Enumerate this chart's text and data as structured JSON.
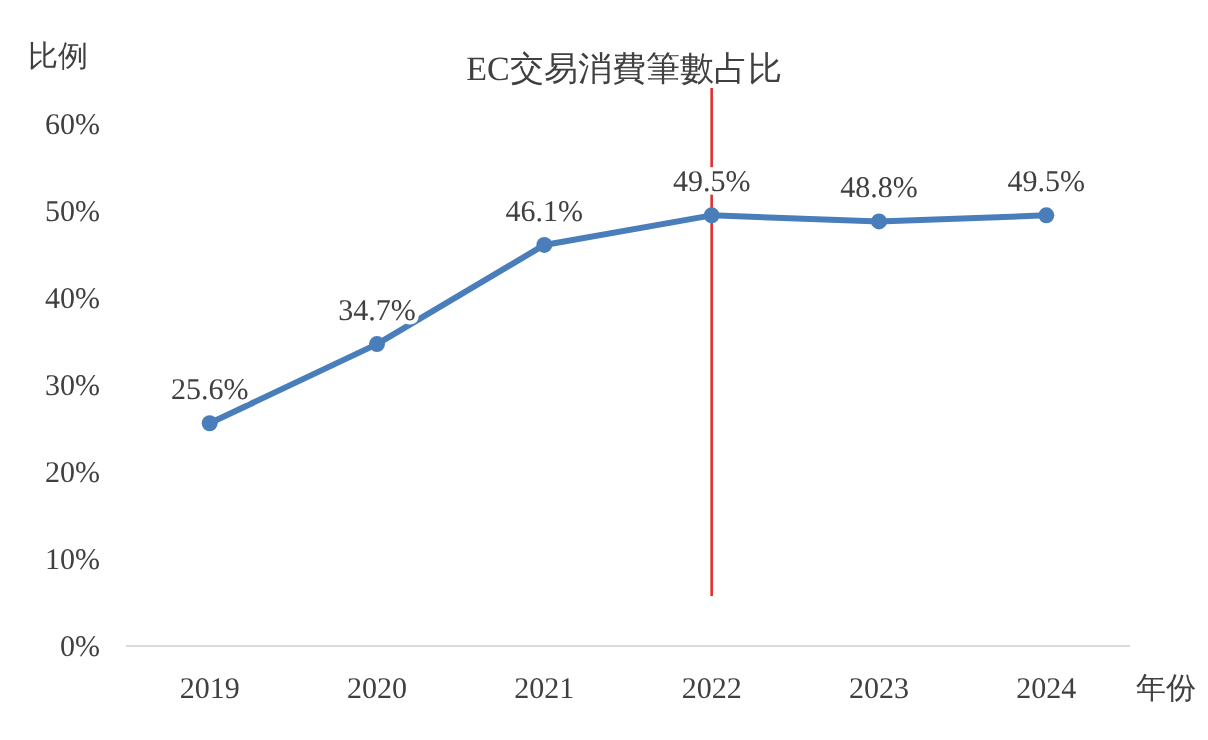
{
  "chart_data": {
    "type": "line",
    "title": "EC交易消費筆數占比",
    "ylabel": "比例",
    "xlabel": "年份",
    "categories": [
      "2019",
      "2020",
      "2021",
      "2022",
      "2023",
      "2024"
    ],
    "series": [
      {
        "color": "#4a7ebb",
        "values": [
          25.6,
          34.7,
          46.1,
          49.5,
          48.8,
          49.5
        ],
        "value_labels": [
          "25.6%",
          "34.7%",
          "46.1%",
          "49.5%",
          "48.8%",
          "49.5%"
        ]
      }
    ],
    "ylim": [
      0,
      60
    ],
    "yticks": [
      {
        "value": 0,
        "label": "0%"
      },
      {
        "value": 10,
        "label": "10%"
      },
      {
        "value": 20,
        "label": "20%"
      },
      {
        "value": 30,
        "label": "30%"
      },
      {
        "value": 40,
        "label": "40%"
      },
      {
        "value": 50,
        "label": "50%"
      },
      {
        "value": 60,
        "label": "60%"
      }
    ],
    "ref_lines": [
      {
        "axis": "x",
        "value": "2022",
        "color": "#e03030"
      }
    ],
    "grid": false,
    "marker": "circle",
    "line_style": "solid"
  }
}
